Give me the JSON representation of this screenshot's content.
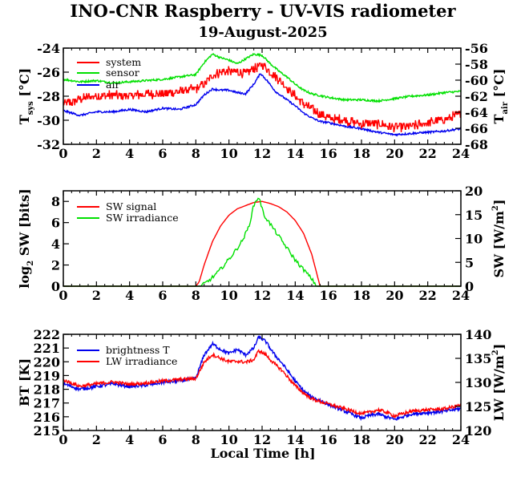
{
  "title": "INO-CNR Raspberry - UV-VIS radiometer",
  "date": "19-August-2025",
  "xlabel": "Local Time [h]",
  "colors": {
    "red": "#ff0000",
    "green": "#00e000",
    "blue": "#0000ee",
    "axes": "#000000"
  },
  "chart_data": [
    {
      "type": "line",
      "x_ticks": [
        "0",
        "2",
        "4",
        "6",
        "8",
        "10",
        "12",
        "14",
        "16",
        "18",
        "20",
        "22",
        "24"
      ],
      "xlim": [
        0,
        24
      ],
      "ylabel_left": {
        "main": "T",
        "sub": "sys",
        "unit": "[°C]"
      },
      "ylabel_right": {
        "main": "T",
        "sub": "air",
        "unit": "[°C]"
      },
      "ylim_left": [
        -32,
        -24
      ],
      "ylim_right": [
        -68,
        -56
      ],
      "yticks_left": [
        "-24",
        "-26",
        "-28",
        "-30",
        "-32"
      ],
      "yticks_right": [
        "-56",
        "-58",
        "-60",
        "-62",
        "-64",
        "-66",
        "-68"
      ],
      "legend": [
        "system",
        "sensor",
        "air"
      ],
      "series": [
        {
          "name": "system",
          "color": "#ff0000",
          "axis": "left",
          "x": [
            0,
            1,
            2,
            3,
            4,
            5,
            6,
            7,
            8,
            8.5,
            9,
            9.5,
            10,
            10.5,
            11,
            11.5,
            12,
            12.5,
            13,
            13.5,
            14,
            14.5,
            15,
            15.5,
            16,
            17,
            18,
            19,
            20,
            21,
            22,
            23,
            24
          ],
          "y": [
            -28.7,
            -28.2,
            -28.0,
            -27.9,
            -28.0,
            -27.8,
            -27.8,
            -27.6,
            -27.4,
            -27.0,
            -26.3,
            -26.0,
            -25.9,
            -26.0,
            -26.1,
            -25.7,
            -25.4,
            -26.0,
            -26.6,
            -27.3,
            -28.0,
            -28.6,
            -29.1,
            -29.5,
            -29.8,
            -30.0,
            -30.3,
            -30.3,
            -30.6,
            -30.5,
            -30.2,
            -29.9,
            -29.5
          ]
        },
        {
          "name": "sensor",
          "color": "#00e000",
          "axis": "left",
          "x": [
            0,
            1,
            2,
            3,
            4,
            5,
            6,
            7,
            8,
            8.5,
            9,
            9.5,
            10,
            10.5,
            11,
            11.5,
            12,
            12.5,
            13,
            13.5,
            14,
            14.5,
            15,
            16,
            17,
            18,
            19,
            20,
            21,
            22,
            23,
            24
          ],
          "y": [
            -26.6,
            -26.8,
            -26.7,
            -26.9,
            -26.8,
            -26.7,
            -26.6,
            -26.4,
            -26.2,
            -25.2,
            -24.5,
            -24.8,
            -25.0,
            -25.3,
            -24.9,
            -24.5,
            -24.6,
            -25.3,
            -25.9,
            -26.4,
            -27.0,
            -27.5,
            -27.8,
            -28.1,
            -28.3,
            -28.3,
            -28.4,
            -28.2,
            -28.0,
            -27.9,
            -27.7,
            -27.6
          ]
        },
        {
          "name": "air",
          "color": "#0000ee",
          "axis": "left",
          "x": [
            0,
            1,
            2,
            3,
            4,
            5,
            6,
            7,
            8,
            8.5,
            9,
            9.5,
            10,
            10.5,
            11,
            11.5,
            11.9,
            12.3,
            12.8,
            13.3,
            14,
            14.5,
            15,
            15.5,
            16,
            17,
            18,
            19,
            20,
            21,
            22,
            23,
            24
          ],
          "y": [
            -29.2,
            -29.6,
            -29.3,
            -29.3,
            -29.1,
            -29.3,
            -29.0,
            -29.1,
            -28.7,
            -27.9,
            -27.4,
            -27.5,
            -27.5,
            -27.7,
            -27.8,
            -27.0,
            -26.1,
            -26.7,
            -27.6,
            -28.1,
            -28.8,
            -29.4,
            -29.8,
            -30.1,
            -30.2,
            -30.5,
            -30.7,
            -31.0,
            -31.2,
            -31.1,
            -31.0,
            -30.9,
            -30.7
          ]
        }
      ]
    },
    {
      "type": "line",
      "x_ticks": [
        "0",
        "2",
        "4",
        "6",
        "8",
        "10",
        "12",
        "14",
        "16",
        "18",
        "20",
        "22",
        "24"
      ],
      "xlim": [
        0,
        24
      ],
      "ylabel_left": {
        "main": "log",
        "sub": "2",
        "unit": "SW [bits]"
      },
      "ylabel_right": {
        "main": "SW [W/m",
        "sup": "2",
        "unit": "]"
      },
      "ylim_left": [
        0,
        9
      ],
      "ylim_right": [
        0,
        20
      ],
      "yticks_left": [
        "0",
        "2",
        "4",
        "6",
        "8"
      ],
      "yticks_right": [
        "0",
        "5",
        "10",
        "15",
        "20"
      ],
      "legend": [
        "SW signal",
        "SW irradiance"
      ],
      "series": [
        {
          "name": "SW signal",
          "color": "#ff0000",
          "axis": "left",
          "x": [
            0,
            8.0,
            8.2,
            8.5,
            9,
            9.5,
            10,
            10.5,
            11,
            11.5,
            12,
            12.5,
            13,
            13.5,
            14,
            14.5,
            15,
            15.3,
            15.5,
            24
          ],
          "y": [
            0,
            0,
            0.4,
            2.0,
            4.2,
            5.7,
            6.7,
            7.3,
            7.6,
            7.9,
            8.0,
            7.8,
            7.5,
            7.0,
            6.2,
            5.0,
            3.0,
            1.2,
            0,
            0
          ]
        },
        {
          "name": "SW irradiance",
          "color": "#00e000",
          "axis": "right",
          "x": [
            0,
            8.3,
            8.8,
            9.3,
            9.8,
            10.3,
            10.8,
            11.2,
            11.5,
            11.8,
            12.1,
            12.4,
            12.8,
            13.2,
            13.6,
            14.0,
            14.5,
            15.0,
            15.3,
            24
          ],
          "y": [
            0,
            0,
            1.2,
            2.8,
            4.8,
            7.0,
            9.5,
            12.5,
            17.0,
            18.8,
            15.0,
            13.5,
            11.5,
            9.5,
            7.5,
            5.5,
            3.5,
            1.5,
            0,
            0
          ]
        }
      ]
    },
    {
      "type": "line",
      "x_ticks": [
        "0",
        "2",
        "4",
        "6",
        "8",
        "10",
        "12",
        "14",
        "16",
        "18",
        "20",
        "22",
        "24"
      ],
      "xlim": [
        0,
        24
      ],
      "ylabel_left": {
        "main": "BT [K]"
      },
      "ylabel_right": {
        "main": "LW [W/m",
        "sup": "2",
        "unit": "]"
      },
      "ylim_left": [
        215,
        222
      ],
      "ylim_right": [
        120,
        140
      ],
      "yticks_left": [
        "222",
        "221",
        "220",
        "219",
        "218",
        "217",
        "216",
        "215"
      ],
      "yticks_right": [
        "140",
        "135",
        "130",
        "125",
        "120"
      ],
      "legend": [
        "brightness T",
        "LW irradiance"
      ],
      "series": [
        {
          "name": "brightness T",
          "color": "#0000ee",
          "axis": "left",
          "x": [
            0,
            1,
            2,
            3,
            4,
            5,
            6,
            7,
            8,
            8.5,
            9,
            9.5,
            10,
            10.5,
            11,
            11.5,
            11.8,
            12.2,
            12.7,
            13.2,
            14,
            14.5,
            15,
            15.5,
            16,
            17,
            18,
            18.5,
            19,
            19.5,
            20,
            21,
            22,
            23,
            24
          ],
          "y": [
            218.4,
            218.0,
            218.2,
            218.4,
            218.2,
            218.3,
            218.5,
            218.6,
            218.8,
            220.5,
            221.3,
            220.9,
            220.6,
            220.9,
            220.5,
            221.0,
            221.8,
            221.5,
            220.6,
            219.9,
            218.6,
            217.9,
            217.4,
            217.2,
            216.9,
            216.4,
            215.9,
            216.1,
            216.2,
            216.0,
            215.8,
            216.2,
            216.3,
            216.4,
            216.6
          ]
        },
        {
          "name": "LW irradiance",
          "color": "#ff0000",
          "axis": "right",
          "x": [
            0,
            1,
            2,
            3,
            4,
            5,
            6,
            7,
            8,
            8.5,
            9,
            9.5,
            10,
            10.5,
            11,
            11.5,
            11.8,
            12.2,
            12.7,
            13.2,
            14,
            14.5,
            15,
            15.5,
            16,
            17,
            18,
            18.5,
            19,
            19.5,
            20,
            21,
            22,
            23,
            24
          ],
          "y": [
            130.5,
            129.2,
            129.7,
            130.1,
            129.6,
            129.9,
            130.3,
            130.6,
            130.8,
            134.2,
            135.8,
            135.0,
            134.3,
            134.4,
            134.2,
            134.7,
            136.6,
            135.8,
            134.0,
            132.5,
            129.3,
            127.8,
            126.6,
            126.0,
            125.5,
            124.5,
            123.5,
            123.8,
            124.3,
            123.8,
            123.0,
            124.0,
            124.3,
            124.5,
            125.3
          ]
        }
      ]
    }
  ]
}
